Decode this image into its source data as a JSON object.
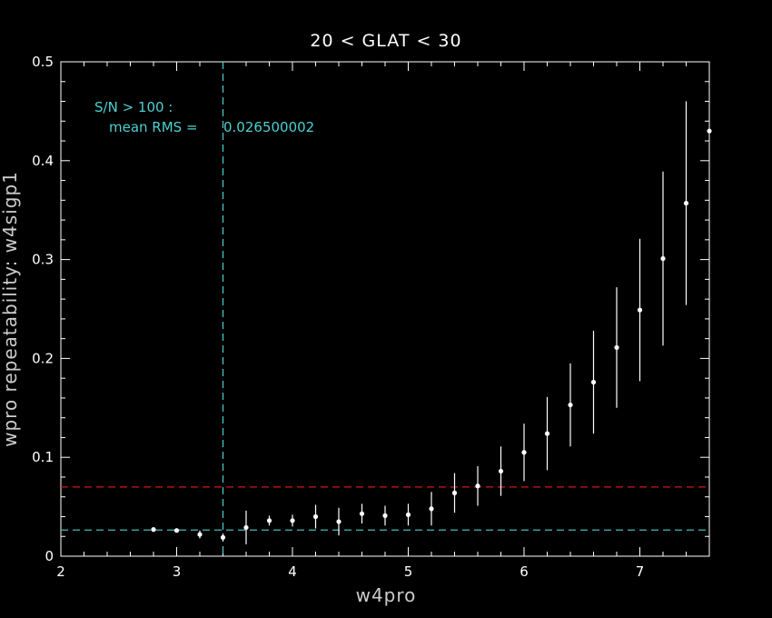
{
  "chart_data": {
    "type": "scatter",
    "title": "20 < GLAT < 30",
    "xlabel": "w4pro",
    "ylabel": "wpro repeatability: w4sigp1",
    "xlim": [
      2,
      7.6
    ],
    "ylim": [
      0,
      0.5
    ],
    "xticks": [
      2,
      3,
      4,
      5,
      6,
      7
    ],
    "yticks": [
      0,
      0.1,
      0.2,
      0.3,
      0.4,
      0.5
    ],
    "ytick_labels": [
      "0",
      "0.1",
      "0.2",
      "0.3",
      "0.4",
      "0.5"
    ],
    "annotation": {
      "line1": "S/N > 100 :",
      "line2_label": "mean RMS = ",
      "line2_value": "0.026500002"
    },
    "reference_lines": {
      "vertical_x": 3.4,
      "horizontal_cyan_y": 0.0265,
      "horizontal_red_y": 0.07
    },
    "series": [
      {
        "points": [
          {
            "x": 2.8,
            "y": 0.027,
            "err": 0.001
          },
          {
            "x": 3.0,
            "y": 0.026,
            "err": 0.002
          },
          {
            "x": 3.2,
            "y": 0.022,
            "err": 0.004
          },
          {
            "x": 3.4,
            "y": 0.019,
            "err": 0.004
          },
          {
            "x": 3.6,
            "y": 0.029,
            "err": 0.017
          },
          {
            "x": 3.8,
            "y": 0.036,
            "err": 0.005
          },
          {
            "x": 4.0,
            "y": 0.036,
            "err": 0.006
          },
          {
            "x": 4.2,
            "y": 0.04,
            "err": 0.012
          },
          {
            "x": 4.4,
            "y": 0.035,
            "err": 0.014
          },
          {
            "x": 4.6,
            "y": 0.043,
            "err": 0.01
          },
          {
            "x": 4.8,
            "y": 0.041,
            "err": 0.01
          },
          {
            "x": 5.0,
            "y": 0.042,
            "err": 0.011
          },
          {
            "x": 5.2,
            "y": 0.048,
            "err": 0.017
          },
          {
            "x": 5.4,
            "y": 0.064,
            "err": 0.02
          },
          {
            "x": 5.6,
            "y": 0.071,
            "err": 0.02
          },
          {
            "x": 5.8,
            "y": 0.086,
            "err": 0.025
          },
          {
            "x": 6.0,
            "y": 0.105,
            "err": 0.029
          },
          {
            "x": 6.2,
            "y": 0.124,
            "err": 0.037
          },
          {
            "x": 6.4,
            "y": 0.153,
            "err": 0.042
          },
          {
            "x": 6.6,
            "y": 0.176,
            "err": 0.052
          },
          {
            "x": 6.8,
            "y": 0.211,
            "err": 0.061
          },
          {
            "x": 7.0,
            "y": 0.249,
            "err": 0.072
          },
          {
            "x": 7.2,
            "y": 0.301,
            "err": 0.088
          },
          {
            "x": 7.4,
            "y": 0.357,
            "err": 0.103
          },
          {
            "x": 7.6,
            "y": 0.43,
            "err": 0.0
          }
        ]
      }
    ],
    "colors": {
      "background": "#000000",
      "axes": "#ffffff",
      "points": "#ffffff",
      "cyan": "#4dd0d0",
      "red": "#d01818",
      "text": "#ffffff",
      "label": "#cccccc"
    }
  }
}
